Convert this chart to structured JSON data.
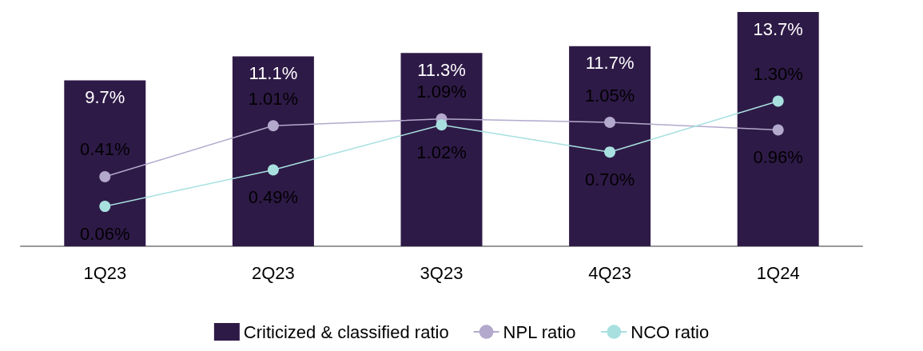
{
  "chart_data": {
    "type": "bar",
    "categories": [
      "1Q23",
      "2Q23",
      "3Q23",
      "4Q23",
      "1Q24"
    ],
    "series": [
      {
        "name": "Criticized & classified ratio",
        "color": "#2e1a47",
        "values": [
          9.7,
          11.1,
          11.3,
          11.7,
          13.7
        ],
        "value_labels": [
          "9.7%",
          "11.1%",
          "11.3%",
          "11.7%",
          "13.7%"
        ]
      },
      {
        "name": "NPL ratio",
        "type": "line",
        "axis": "y2",
        "color": "#b3a9cc",
        "values": [
          0.41,
          1.01,
          1.09,
          1.05,
          0.96
        ],
        "value_labels": [
          "0.41%",
          "1.01%",
          "1.09%",
          "1.05%",
          "0.96%"
        ]
      },
      {
        "name": "NCO ratio",
        "type": "line",
        "axis": "y2",
        "color": "#a8e0e0",
        "values": [
          0.06,
          0.49,
          1.02,
          0.7,
          1.3
        ],
        "value_labels": [
          "0.06%",
          "0.49%",
          "1.02%",
          "0.70%",
          "1.30%"
        ]
      }
    ],
    "legend": "bottom",
    "marker": "circle",
    "line_style": "solid",
    "grid": false
  }
}
